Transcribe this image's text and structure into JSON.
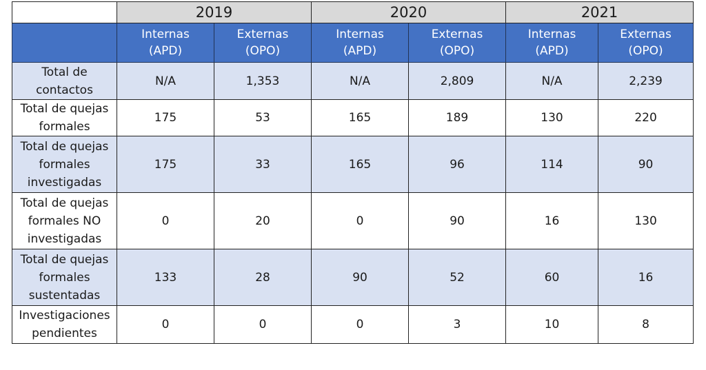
{
  "years": [
    "2019",
    "2020",
    "2021"
  ],
  "subheaders": [
    {
      "line1": "Internas",
      "line2": "(APD)"
    },
    {
      "line1": "Externas",
      "line2": "(OPO)"
    }
  ],
  "rows": [
    {
      "label": [
        "Total de",
        "contactos"
      ],
      "values": [
        "N/A",
        "1,353",
        "N/A",
        "2,809",
        "N/A",
        "2,239"
      ]
    },
    {
      "label": [
        "Total de quejas",
        "formales"
      ],
      "values": [
        "175",
        "53",
        "165",
        "189",
        "130",
        "220"
      ]
    },
    {
      "label": [
        "Total de quejas",
        "formales",
        "investigadas"
      ],
      "values": [
        "175",
        "33",
        "165",
        "96",
        "114",
        "90"
      ]
    },
    {
      "label": [
        "Total de quejas",
        "formales NO",
        "investigadas"
      ],
      "values": [
        "0",
        "20",
        "0",
        "90",
        "16",
        "130"
      ]
    },
    {
      "label": [
        "Total de quejas",
        "formales",
        "sustentadas"
      ],
      "values": [
        "133",
        "28",
        "90",
        "52",
        "60",
        "16"
      ]
    },
    {
      "label": [
        "Investigaciones",
        "pendientes"
      ],
      "values": [
        "0",
        "0",
        "0",
        "3",
        "10",
        "8"
      ]
    }
  ],
  "colors": {
    "header_blue": "#4472c4",
    "year_gray": "#d9d9d9",
    "band_blue": "#d9e1f2"
  }
}
